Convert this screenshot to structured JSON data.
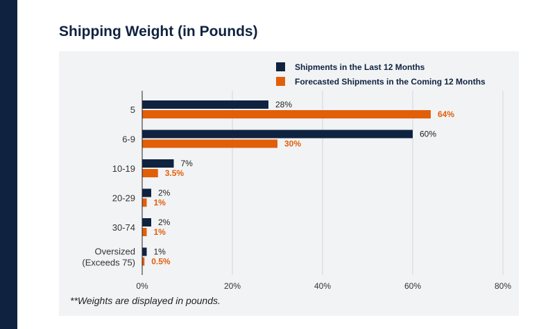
{
  "title": "Shipping Weight (in Pounds)",
  "footnote": "**Weights are displayed in pounds.",
  "colors": {
    "sidebar": "#0f2340",
    "panel": "#f2f3f5",
    "series_last": "#0f2340",
    "series_forecast": "#e15f09",
    "grid": "#d4d6da",
    "axis": "#222222"
  },
  "chart_data": {
    "type": "bar",
    "orientation": "horizontal",
    "title": "Shipping Weight (in Pounds)",
    "categories": [
      "5",
      "6-9",
      "10-19",
      "20-29",
      "30-74",
      "Oversized\n(Exceeds 75)"
    ],
    "series": [
      {
        "name": "Shipments in the Last 12 Months",
        "color": "#0f2340",
        "values": [
          28,
          60,
          7,
          2,
          2,
          1
        ],
        "labels": [
          "28%",
          "60%",
          "7%",
          "2%",
          "2%",
          "1%"
        ]
      },
      {
        "name": "Forecasted Shipments in the Coming 12 Months",
        "color": "#e15f09",
        "values": [
          64,
          30,
          3.5,
          1,
          1,
          0.5
        ],
        "labels": [
          "64%",
          "30%",
          "3.5%",
          "1%",
          "1%",
          "0.5%"
        ]
      }
    ],
    "xlim": [
      0,
      80
    ],
    "xticks": [
      0,
      20,
      40,
      60,
      80
    ],
    "xtick_labels": [
      "0%",
      "20%",
      "40%",
      "60%",
      "80%"
    ],
    "grid": true,
    "legend_position": "top-right"
  }
}
